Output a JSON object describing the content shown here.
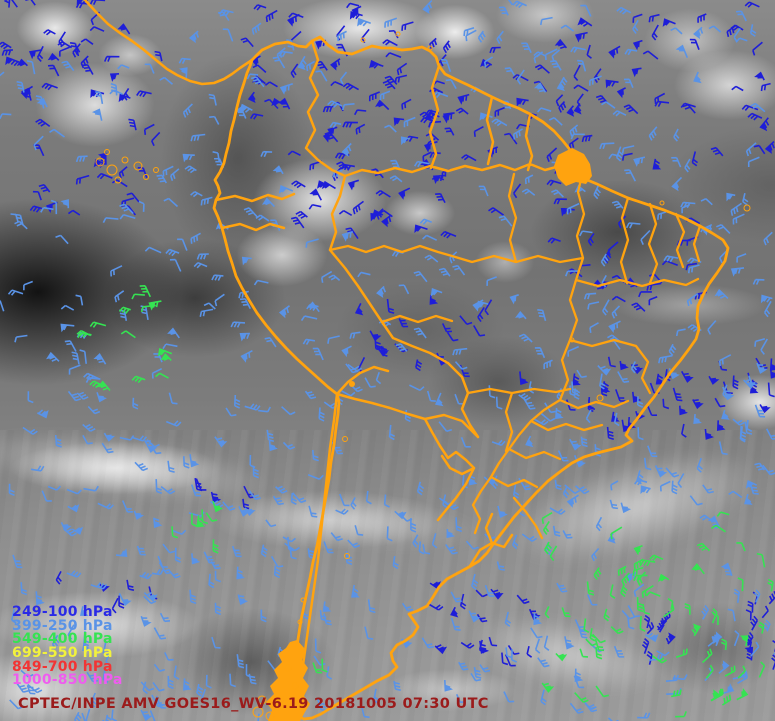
{
  "credit": {
    "text": "CPTEC/INPE  AMV GOES16_WV-6.19 20181005 07:30 UTC",
    "color": "#9b1b1b"
  },
  "legend": {
    "items": [
      {
        "level": "249-100",
        "label": "249-100 hPa",
        "color": "#2a2ae6"
      },
      {
        "level": "399-250",
        "label": "399-250 hPa",
        "color": "#5a93e6"
      },
      {
        "level": "549-400",
        "label": "549-400 hPa",
        "color": "#35e352"
      },
      {
        "level": "699-550",
        "label": "699-550 hPa",
        "color": "#f2f23c"
      },
      {
        "level": "849-700",
        "label": "849-700 hPa",
        "color": "#f23434"
      },
      {
        "level": "1000-850",
        "label": "1000-850 hPa",
        "color": "#ef5cef"
      }
    ]
  },
  "map": {
    "border_color": "#ffa30f"
  },
  "barb_colors": {
    "249-100": "#1e1ed8",
    "399-250": "#5a93e6",
    "549-400": "#35e352"
  },
  "wind_fields": [
    {
      "level": "249-100",
      "region": [
        0,
        0,
        140,
        90
      ],
      "count": 26,
      "angle": 195,
      "spread": 80,
      "flags": 0.3
    },
    {
      "level": "249-100",
      "region": [
        15,
        60,
        150,
        170
      ],
      "count": 30,
      "angle": 200,
      "spread": 70,
      "flags": 0.25
    },
    {
      "level": "249-100",
      "region": [
        250,
        5,
        210,
        115
      ],
      "count": 46,
      "angle": 185,
      "spread": 60,
      "flags": 0.3
    },
    {
      "level": "249-100",
      "region": [
        300,
        110,
        160,
        130
      ],
      "count": 46,
      "angle": 190,
      "spread": 55,
      "flags": 0.35
    },
    {
      "level": "249-100",
      "region": [
        430,
        40,
        140,
        180
      ],
      "count": 32,
      "angle": 185,
      "spread": 60,
      "flags": 0.3
    },
    {
      "level": "249-100",
      "region": [
        560,
        0,
        215,
        160
      ],
      "count": 46,
      "angle": 175,
      "spread": 75,
      "flags": 0.3
    },
    {
      "level": "249-100",
      "region": [
        545,
        205,
        165,
        115
      ],
      "count": 24,
      "angle": 180,
      "spread": 60,
      "flags": 0.25
    },
    {
      "level": "249-100",
      "region": [
        355,
        295,
        170,
        80
      ],
      "count": 20,
      "angle": 85,
      "spread": 45,
      "flags": 0.35
    },
    {
      "level": "249-100",
      "region": [
        560,
        355,
        215,
        75
      ],
      "count": 40,
      "angle": 80,
      "spread": 25,
      "flags": 0.5
    },
    {
      "level": "249-100",
      "region": [
        425,
        580,
        110,
        75
      ],
      "count": 18,
      "angle": 75,
      "spread": 45,
      "flags": 0.3
    },
    {
      "level": "249-100",
      "region": [
        745,
        598,
        30,
        80
      ],
      "count": 11,
      "angle": -70,
      "spread": 25,
      "flags": 0.2
    },
    {
      "level": "249-100",
      "region": [
        636,
        612,
        34,
        58
      ],
      "count": 8,
      "angle": -65,
      "spread": 30,
      "flags": 0.2
    },
    {
      "level": "249-100",
      "region": [
        60,
        565,
        90,
        35
      ],
      "count": 6,
      "angle": 85,
      "spread": 40,
      "flags": 0.2
    },
    {
      "level": "249-100",
      "region": [
        175,
        470,
        90,
        30
      ],
      "count": 5,
      "angle": 85,
      "spread": 30,
      "flags": 0.2
    },
    {
      "level": "399-250",
      "region": [
        0,
        55,
        225,
        330
      ],
      "count": 75,
      "angle": 205,
      "spread": 70,
      "flags": 0.15
    },
    {
      "level": "399-250",
      "region": [
        0,
        385,
        340,
        200
      ],
      "count": 90,
      "angle": 50,
      "spread": 45,
      "flags": 0.15
    },
    {
      "level": "399-250",
      "region": [
        190,
        0,
        380,
        115
      ],
      "count": 50,
      "angle": 190,
      "spread": 70,
      "flags": 0.2
    },
    {
      "level": "399-250",
      "region": [
        555,
        0,
        220,
        205
      ],
      "count": 45,
      "angle": 180,
      "spread": 80,
      "flags": 0.15
    },
    {
      "level": "399-250",
      "region": [
        215,
        115,
        350,
        250
      ],
      "count": 75,
      "angle": 195,
      "spread": 60,
      "flags": 0.2
    },
    {
      "level": "399-250",
      "region": [
        330,
        360,
        235,
        185
      ],
      "count": 65,
      "angle": 70,
      "spread": 50,
      "flags": 0.15
    },
    {
      "level": "399-250",
      "region": [
        555,
        200,
        220,
        165
      ],
      "count": 45,
      "angle": 175,
      "spread": 60,
      "flags": 0.1
    },
    {
      "level": "399-250",
      "region": [
        555,
        360,
        220,
        150
      ],
      "count": 50,
      "angle": 80,
      "spread": 40,
      "flags": 0.25
    },
    {
      "level": "399-250",
      "region": [
        150,
        540,
        430,
        175
      ],
      "count": 85,
      "angle": 80,
      "spread": 30,
      "flags": 0.15
    },
    {
      "level": "399-250",
      "region": [
        0,
        590,
        165,
        131
      ],
      "count": 34,
      "angle": 80,
      "spread": 40,
      "flags": 0.15
    },
    {
      "level": "399-250",
      "region": [
        575,
        470,
        200,
        250
      ],
      "count": 48,
      "swirl": [
        665,
        600
      ],
      "spread": 28,
      "flags": 0.15
    },
    {
      "level": "549-400",
      "region": [
        88,
        292,
        90,
        105
      ],
      "count": 15,
      "angle": 210,
      "spread": 45,
      "flags": 0.15
    },
    {
      "level": "549-400",
      "region": [
        170,
        498,
        55,
        42
      ],
      "count": 7,
      "angle": 80,
      "spread": 30,
      "flags": 0.15
    },
    {
      "level": "549-400",
      "region": [
        538,
        512,
        237,
        205
      ],
      "count": 70,
      "swirl": [
        660,
        608
      ],
      "spread": 28,
      "flags": 0.2
    },
    {
      "level": "549-400",
      "region": [
        305,
        648,
        30,
        18
      ],
      "count": 2,
      "angle": 75,
      "spread": 20,
      "flags": 0
    }
  ]
}
